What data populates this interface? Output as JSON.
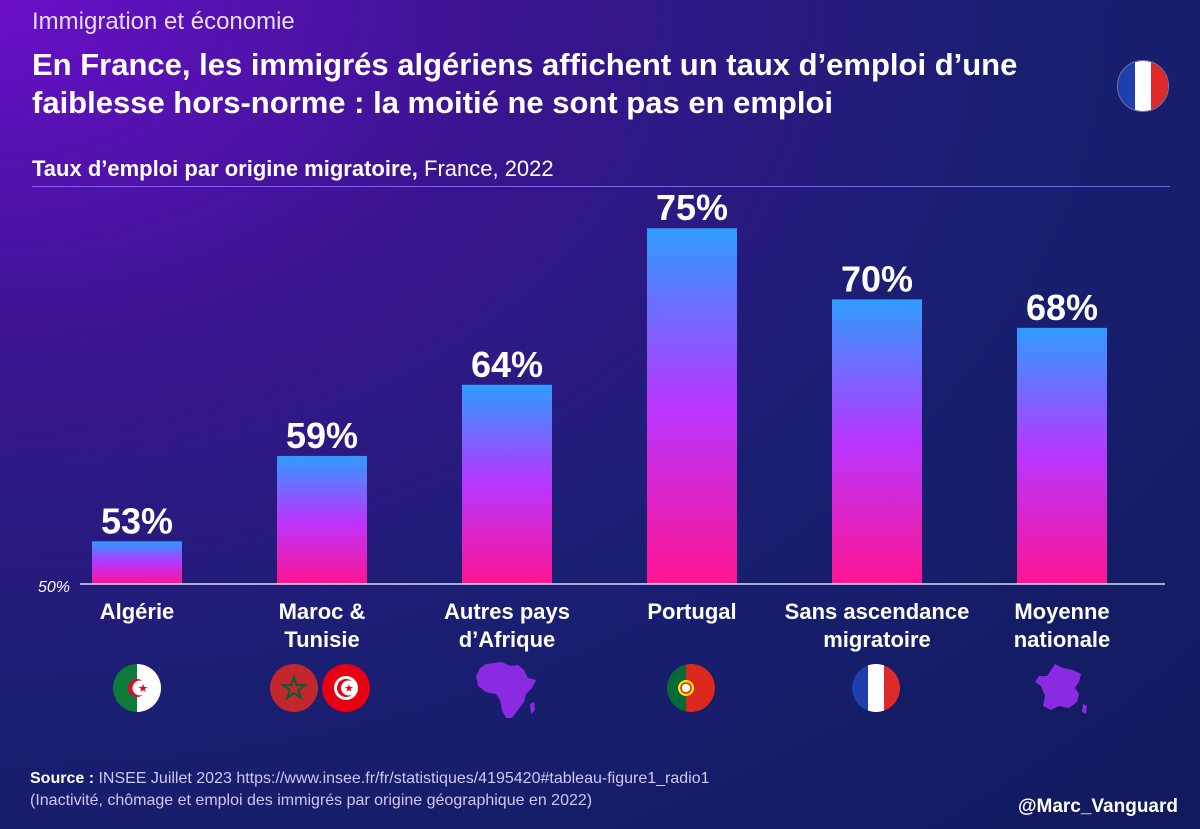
{
  "kicker": "Immigration et économie",
  "headline_line1": "En France, les immigrés algériens affichent un taux d’emploi d’une",
  "headline_line2": "faiblesse hors-norme : la moitié ne sont pas en emploi",
  "subtitle_bold": "Taux d’emploi par origine migratoire,",
  "subtitle_rest": " France, 2022",
  "colors": {
    "bar_top": "#2f9cff",
    "bar_mid": "#b836ff",
    "bar_bottom": "#ff1493"
  },
  "chart_data": {
    "type": "bar",
    "title": "Taux d’emploi par origine migratoire, France, 2022",
    "categories": [
      "Algérie",
      "Maroc & Tunisie",
      "Autres pays d’Afrique",
      "Portugal",
      "Sans ascendance migratoire",
      "Moyenne nationale"
    ],
    "category_lines": [
      [
        "Algérie"
      ],
      [
        "Maroc &",
        "Tunisie"
      ],
      [
        "Autres pays",
        "d’Afrique"
      ],
      [
        "Portugal"
      ],
      [
        "Sans ascendance",
        "migratoire"
      ],
      [
        "Moyenne",
        "nationale"
      ]
    ],
    "values": [
      53,
      59,
      64,
      75,
      70,
      68
    ],
    "value_labels": [
      "53%",
      "59%",
      "64%",
      "75%",
      "70%",
      "68%"
    ],
    "ylim": [
      50,
      76
    ],
    "baseline_label": "50%",
    "xlabel": "",
    "ylabel": ""
  },
  "icons": [
    "algeria-flag-icon",
    "morocco-flag-icon",
    "tunisia-flag-icon",
    "africa-map-icon",
    "portugal-flag-icon",
    "france-flag-icon",
    "france-map-icon"
  ],
  "source_label": "Source :",
  "source_text": " INSEE Juillet 2023 https://www.insee.fr/fr/statistiques/4195420#tableau-figure1_radio1",
  "source_note": "(Inactivité, chômage et emploi des immigrés par origine géographique en 2022)",
  "handle": "@Marc_Vanguard"
}
